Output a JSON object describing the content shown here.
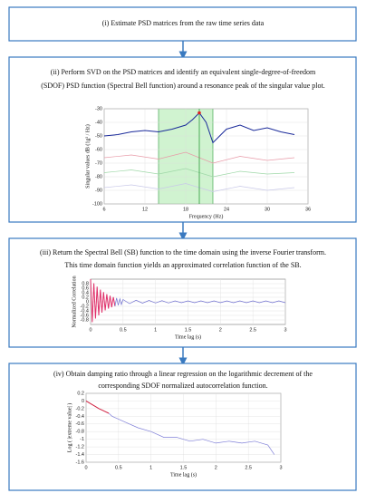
{
  "steps": [
    {
      "text": [
        "(i) Estimate PSD matrices from the raw time series data"
      ]
    },
    {
      "text": [
        "(ii) Perform SVD on the PSD matrices and identify an equivalent single-degree-of-freedom",
        "(SDOF) PSD function (Spectral Bell function) around a resonance peak of the singular value plot."
      ],
      "chart": {
        "type": "line",
        "xlabel": "Frequency (Hz)",
        "ylabel": "Singular values dB (1g² / Hz)",
        "xlim": [
          6,
          36
        ],
        "ylim": [
          -100,
          -30
        ],
        "xticks": [
          6,
          12,
          18,
          24,
          30,
          36
        ],
        "yticks": [
          -30,
          -40,
          -50,
          -60,
          -70,
          -80,
          -90,
          -100
        ],
        "grid": true,
        "band": [
          14,
          22
        ],
        "peak": {
          "x": 20,
          "y": -33,
          "color": "#e02020"
        },
        "series": [
          {
            "color": "#1a2a9a",
            "x": [
              6,
              8,
              10,
              12,
              14,
              16,
              18,
              19,
              20,
              21,
              22,
              24,
              26,
              28,
              30,
              32,
              34
            ],
            "values": [
              -50,
              -49,
              -47,
              -46,
              -47,
              -45,
              -42,
              -38,
              -33,
              -40,
              -55,
              -45,
              -42,
              -46,
              -44,
              -47,
              -49
            ]
          },
          {
            "color": "#e89aa8",
            "x": [
              6,
              10,
              14,
              18,
              22,
              26,
              30,
              34
            ],
            "values": [
              -66,
              -64,
              -67,
              -62,
              -70,
              -65,
              -68,
              -66
            ]
          },
          {
            "color": "#9fd8a8",
            "x": [
              6,
              10,
              14,
              18,
              22,
              26,
              30,
              34
            ],
            "values": [
              -77,
              -75,
              -78,
              -74,
              -80,
              -76,
              -78,
              -77
            ]
          },
          {
            "color": "#c8c8e8",
            "x": [
              6,
              10,
              14,
              18,
              22,
              26,
              30,
              34
            ],
            "values": [
              -88,
              -86,
              -89,
              -85,
              -91,
              -87,
              -90,
              -88
            ]
          }
        ]
      }
    },
    {
      "text": [
        "(iii) Return the Spectral Bell (SB) function to the time domain using the inverse Fourier transform.",
        "This time domain function yields an approximated correlation function of the SB."
      ],
      "chart": {
        "type": "line",
        "xlabel": "Time lag (s)",
        "ylabel": "Normalized Correlation",
        "xlim": [
          0,
          3
        ],
        "ylim": [
          -1,
          1
        ],
        "xticks": [
          0,
          0.5,
          1,
          1.5,
          2,
          2.5,
          3
        ],
        "yticks": [
          0.8,
          0.6,
          0.4,
          0.2,
          0,
          -0.2,
          -0.4,
          -0.6,
          -0.8
        ],
        "grid": true,
        "series": [
          {
            "color": "#e0306a",
            "x": [
              0,
              0.025,
              0.05,
              0.075,
              0.1,
              0.125,
              0.15,
              0.175,
              0.2,
              0.225,
              0.25,
              0.275,
              0.3,
              0.325,
              0.35,
              0.375
            ],
            "values": [
              1,
              -0.9,
              0.82,
              -0.74,
              0.67,
              -0.6,
              0.54,
              -0.48,
              0.43,
              -0.38,
              0.34,
              -0.3,
              0.27,
              -0.24,
              0.21,
              -0.19
            ]
          },
          {
            "color": "#7070d0",
            "x": [
              0.375,
              0.4,
              0.425,
              0.45,
              0.475,
              0.5,
              0.6,
              0.7,
              0.8,
              0.9,
              1,
              1.1,
              1.2,
              1.3,
              1.4,
              1.5,
              1.6,
              1.7,
              1.8,
              1.9,
              2,
              2.1,
              2.2,
              2.3,
              2.4,
              2.5,
              2.6,
              2.7,
              2.8,
              2.9,
              3
            ],
            "values": [
              -0.19,
              0.17,
              -0.15,
              0.13,
              -0.12,
              0.1,
              -0.08,
              0.07,
              -0.06,
              0.06,
              -0.05,
              0.05,
              -0.05,
              0.04,
              -0.04,
              0.04,
              -0.04,
              0.04,
              -0.04,
              0.04,
              -0.04,
              0.04,
              -0.04,
              0.04,
              -0.04,
              0.04,
              -0.04,
              0.04,
              -0.04,
              0.04,
              -0.04
            ]
          }
        ]
      }
    },
    {
      "text": [
        "(iv) Obtain damping ratio through a linear regression on the logarithmic decrement of the",
        "corresponding SDOF normalized autocorrelation function."
      ],
      "chart": {
        "type": "line",
        "xlabel": "Time lag (s)",
        "ylabel": "Log ( |extreme value| )",
        "xlim": [
          0,
          3
        ],
        "ylim": [
          -1.6,
          0.2
        ],
        "xticks": [
          0,
          0.5,
          1,
          1.5,
          2,
          2.5,
          3
        ],
        "yticks": [
          0.2,
          0,
          -0.2,
          -0.4,
          -0.6,
          -0.8,
          -1,
          -1.2,
          -1.4,
          -1.6
        ],
        "grid": true,
        "series": [
          {
            "color": "#d02040",
            "x": [
              0,
              0.05,
              0.1,
              0.15,
              0.2,
              0.25,
              0.3,
              0.35
            ],
            "values": [
              0,
              -0.05,
              -0.1,
              -0.15,
              -0.2,
              -0.24,
              -0.28,
              -0.32
            ]
          },
          {
            "color": "#8080d8",
            "x": [
              0.35,
              0.4,
              0.6,
              0.8,
              1,
              1.2,
              1.4,
              1.6,
              1.8,
              2,
              2.2,
              2.4,
              2.6,
              2.8,
              2.9
            ],
            "values": [
              -0.32,
              -0.4,
              -0.55,
              -0.7,
              -0.8,
              -0.95,
              -0.95,
              -1.05,
              -1,
              -1.1,
              -1.05,
              -1.1,
              -1.05,
              -1.15,
              -1.4
            ]
          }
        ]
      }
    }
  ]
}
